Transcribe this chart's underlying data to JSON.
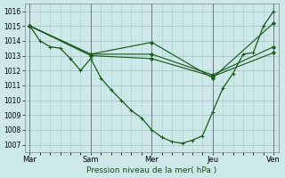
{
  "xlabel": "Pression niveau de la mer( hPa )",
  "background_color": "#cce8e8",
  "grid_color": "#aacccc",
  "line_color": "#1a5c1a",
  "vline_color": "#555566",
  "ylim": [
    1006.5,
    1016.5
  ],
  "yticks": [
    1007,
    1008,
    1009,
    1010,
    1011,
    1012,
    1013,
    1014,
    1015,
    1016
  ],
  "xtick_labels": [
    "Mar",
    "Sam",
    "Mer",
    "Jeu",
    "Ven"
  ],
  "xtick_positions": [
    0,
    12,
    24,
    36,
    48
  ],
  "vlines": [
    0,
    12,
    24,
    36,
    48
  ],
  "series": [
    {
      "x": [
        0,
        2,
        4,
        6,
        8,
        10,
        12,
        14,
        16,
        18,
        20,
        22,
        24,
        26,
        28,
        30,
        32,
        34,
        36,
        38,
        40,
        42,
        44,
        46,
        48
      ],
      "y": [
        1015.0,
        1014.0,
        1013.6,
        1013.5,
        1012.8,
        1012.0,
        1012.8,
        1011.5,
        1010.7,
        1010.0,
        1009.3,
        1008.8,
        1008.0,
        1007.5,
        1007.2,
        1007.1,
        1007.3,
        1007.6,
        1009.2,
        1010.8,
        1011.8,
        1013.1,
        1013.2,
        1015.0,
        1016.0
      ]
    },
    {
      "x": [
        0,
        12,
        24,
        36,
        48
      ],
      "y": [
        1015.0,
        1013.1,
        1013.9,
        1011.5,
        1015.2
      ]
    },
    {
      "x": [
        0,
        12,
        24,
        36,
        48
      ],
      "y": [
        1015.0,
        1013.1,
        1013.1,
        1011.7,
        1013.6
      ]
    },
    {
      "x": [
        0,
        12,
        24,
        36,
        48
      ],
      "y": [
        1015.0,
        1013.0,
        1012.8,
        1011.6,
        1013.2
      ]
    }
  ]
}
